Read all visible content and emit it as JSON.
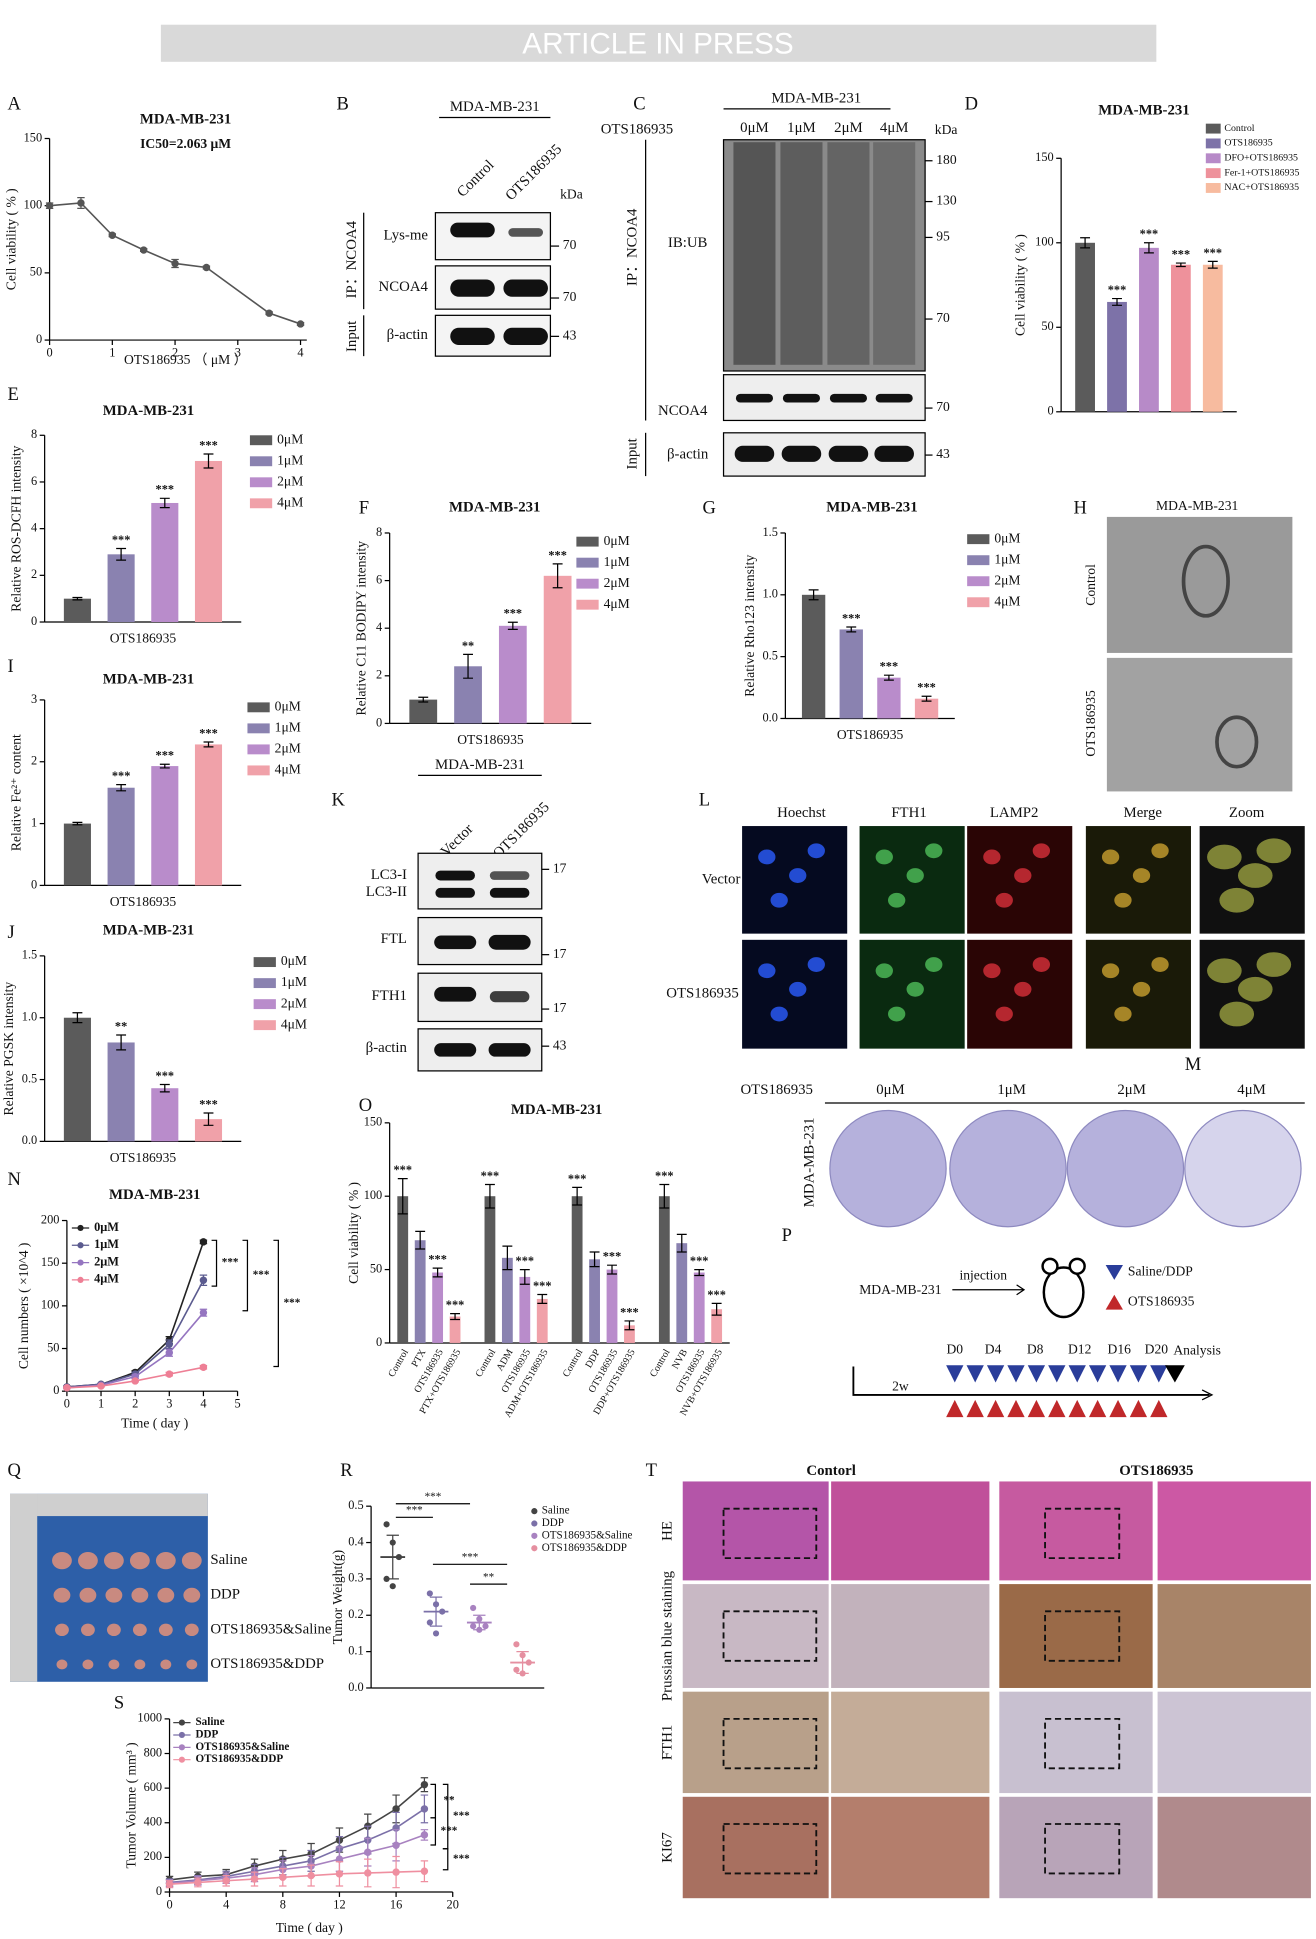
{
  "banner": "ARTICLE IN PRESS",
  "chart_data": [
    {
      "type": "line",
      "panel": "A",
      "title": "MDA-MB-231",
      "annotation": "IC50=2.063 μM",
      "xlabel": "OTS186935 （ μM ）",
      "ylabel": "Cell viability ( % )",
      "x": [
        0,
        0.5,
        1,
        1.5,
        2,
        2.5,
        3.5,
        4
      ],
      "series": [
        {
          "color": "#555555",
          "values": [
            100,
            102,
            78,
            67,
            57,
            54,
            20,
            12
          ],
          "errors": [
            2,
            4,
            1,
            1,
            3,
            1,
            1,
            1
          ]
        }
      ],
      "xlim": [
        0,
        4.1
      ],
      "xticks": [
        0,
        1,
        2,
        3,
        4
      ],
      "ylim": [
        0,
        150
      ],
      "yticks": [
        0,
        50,
        100,
        150
      ],
      "markers": true
    },
    {
      "type": "bar",
      "panel": "D",
      "title": "MDA-MB-231",
      "ylabel": "Cell viability ( % )",
      "categories": [
        "Control",
        "OTS186935",
        "DFO+OTS186935",
        "Fer-1+OTS186935",
        "NAC+OTS186935"
      ],
      "values": [
        100,
        65,
        97,
        87,
        87
      ],
      "errors": [
        3,
        2,
        3,
        1,
        2
      ],
      "colors": [
        "#5b5b5b",
        "#7d72a8",
        "#b78ac8",
        "#ee919b",
        "#f7bb9f"
      ],
      "significance": [
        null,
        "***",
        "***",
        "***",
        "***"
      ],
      "ylim": [
        0,
        150
      ],
      "yticks": [
        0,
        50,
        100,
        150
      ],
      "legend": "upper right"
    },
    {
      "type": "bar",
      "panel": "E",
      "title": "MDA-MB-231",
      "xlabel": "OTS186935",
      "ylabel": "Relative ROS-DCFH intensity",
      "categories": [
        "0μM",
        "1μM",
        "2μM",
        "4μM"
      ],
      "values": [
        1,
        2.9,
        5.1,
        6.9
      ],
      "errors": [
        0.05,
        0.25,
        0.2,
        0.3
      ],
      "colors": [
        "#5b5b5b",
        "#8a82b0",
        "#b98ccb",
        "#f0a1a9"
      ],
      "significance": [
        null,
        "***",
        "***",
        "***"
      ],
      "ylim": [
        0,
        8
      ],
      "yticks": [
        0,
        2,
        4,
        6,
        8
      ],
      "legend": "right"
    },
    {
      "type": "bar",
      "panel": "F",
      "title": "MDA-MB-231",
      "xlabel": "OTS186935",
      "ylabel": "Relative C11 BODIPY intensity",
      "categories": [
        "0μM",
        "1μM",
        "2μM",
        "4μM"
      ],
      "values": [
        1,
        2.4,
        4.1,
        6.2
      ],
      "errors": [
        0.1,
        0.5,
        0.15,
        0.5
      ],
      "colors": [
        "#5b5b5b",
        "#8a82b0",
        "#b98ccb",
        "#f0a1a9"
      ],
      "significance": [
        null,
        "**",
        "***",
        "***"
      ],
      "ylim": [
        0,
        8
      ],
      "yticks": [
        0,
        2,
        4,
        6,
        8
      ],
      "legend": "right"
    },
    {
      "type": "bar",
      "panel": "G",
      "title": "MDA-MB-231",
      "xlabel": "OTS186935",
      "ylabel": "Relative Rho123 intensity",
      "categories": [
        "0μM",
        "1μM",
        "2μM",
        "4μM"
      ],
      "values": [
        1,
        0.72,
        0.33,
        0.16
      ],
      "errors": [
        0.04,
        0.02,
        0.02,
        0.02
      ],
      "colors": [
        "#5b5b5b",
        "#8a82b0",
        "#b98ccb",
        "#f0a1a9"
      ],
      "significance": [
        null,
        "***",
        "***",
        "***"
      ],
      "ylim": [
        0,
        1.5
      ],
      "yticks": [
        {
          "value": 0,
          "label": "0.0"
        },
        {
          "value": 0.5,
          "label": "0.5"
        },
        {
          "value": 1,
          "label": "1.0"
        },
        {
          "value": 1.5,
          "label": "1.5"
        }
      ],
      "legend": "right"
    },
    {
      "type": "bar",
      "panel": "I",
      "title": "MDA-MB-231",
      "xlabel": "OTS186935",
      "ylabel": "Relative Fe²⁺ content",
      "categories": [
        "0μM",
        "1μM",
        "2μM",
        "4μM"
      ],
      "values": [
        1,
        1.58,
        1.93,
        2.28
      ],
      "errors": [
        0.02,
        0.05,
        0.03,
        0.04
      ],
      "colors": [
        "#5b5b5b",
        "#8a82b0",
        "#b98ccb",
        "#f0a1a9"
      ],
      "significance": [
        null,
        "***",
        "***",
        "***"
      ],
      "ylim": [
        0,
        3
      ],
      "yticks": [
        0,
        1,
        2,
        3
      ],
      "legend": "right"
    },
    {
      "type": "bar",
      "panel": "J",
      "title": "MDA-MB-231",
      "xlabel": "OTS186935",
      "ylabel": "Relative PGSK intensity",
      "categories": [
        "0μM",
        "1μM",
        "2μM",
        "4μM"
      ],
      "values": [
        1,
        0.8,
        0.43,
        0.18
      ],
      "errors": [
        0.04,
        0.06,
        0.03,
        0.05
      ],
      "colors": [
        "#5b5b5b",
        "#8a82b0",
        "#b98ccb",
        "#f0a1a9"
      ],
      "significance": [
        null,
        "**",
        "***",
        "***"
      ],
      "ylim": [
        0,
        1.5
      ],
      "yticks": [
        {
          "value": 0,
          "label": "0.0"
        },
        {
          "value": 0.5,
          "label": "0.5"
        },
        {
          "value": 1,
          "label": "1.0"
        },
        {
          "value": 1.5,
          "label": "1.5"
        }
      ],
      "legend": "right"
    },
    {
      "type": "line",
      "panel": "N",
      "title": "MDA-MB-231",
      "xlabel": "Time ( day )",
      "ylabel": "Cell numbers ( ×10^4 )",
      "x": [
        0,
        1,
        2,
        3,
        4
      ],
      "series": [
        {
          "name": "0μM",
          "color": "#222222",
          "values": [
            5,
            8,
            22,
            60,
            175
          ],
          "errors": [
            1,
            1,
            2,
            4,
            2
          ]
        },
        {
          "name": "1μM",
          "color": "#5b5b8f",
          "values": [
            5,
            8,
            20,
            55,
            130
          ],
          "errors": [
            1,
            1,
            2,
            5,
            6
          ]
        },
        {
          "name": "2μM",
          "color": "#9575c0",
          "values": [
            4,
            7,
            17,
            45,
            92
          ],
          "errors": [
            1,
            1,
            2,
            4,
            4
          ]
        },
        {
          "name": "4μM",
          "color": "#ee7f95",
          "values": [
            4,
            6,
            12,
            20,
            28
          ],
          "errors": [
            1,
            1,
            1,
            2,
            2
          ]
        }
      ],
      "significance": [
        "***",
        "***",
        "***"
      ],
      "xlim": [
        0,
        5
      ],
      "xticks": [
        0,
        1,
        2,
        3,
        4,
        5
      ],
      "ylim": [
        0,
        200
      ],
      "yticks": [
        0,
        50,
        100,
        150,
        200
      ],
      "markers": true,
      "legend": "upper left"
    },
    {
      "type": "bar",
      "panel": "O",
      "title": "MDA-MB-231",
      "ylabel": "Cell viability ( % )",
      "categories": [
        "Control",
        "PTX",
        "OTS186935",
        "PTX+OTS186935",
        "Control",
        "ADM",
        "OTS186935",
        "ADM+OTS186935",
        "Control",
        "DDP",
        "OTS186935",
        "DDP+OTS186935",
        "Control",
        "NVB",
        "OTS186935",
        "NVB+OTS186935"
      ],
      "values": [
        100,
        70,
        48,
        18,
        100,
        58,
        45,
        30,
        100,
        57,
        50,
        12,
        100,
        68,
        48,
        23
      ],
      "errors": [
        12,
        6,
        3,
        2,
        8,
        8,
        5,
        3,
        6,
        5,
        3,
        3,
        8,
        6,
        2,
        4
      ],
      "colors": [
        "#5b5b5b",
        "#8a82b0",
        "#b98ccb",
        "#f0a1a9"
      ],
      "significance": [
        "***",
        null,
        "***",
        "***",
        "***",
        null,
        "***",
        "***",
        "***",
        null,
        "***",
        "***",
        "***",
        null,
        "***",
        "***"
      ],
      "ylim": [
        0,
        150
      ],
      "yticks": [
        0,
        50,
        100,
        150
      ]
    },
    {
      "type": "dot",
      "panel": "R",
      "ylabel": "Tumor Weight(g)",
      "categories": [
        "Saline",
        "DDP",
        "OTS186935&Saline",
        "OTS186935&DDP"
      ],
      "values": [
        0.36,
        0.21,
        0.18,
        0.07
      ],
      "errors": [
        0.06,
        0.04,
        0.02,
        0.03
      ],
      "points": [
        [
          0.45,
          0.4,
          0.36,
          0.3,
          0.28
        ],
        [
          0.26,
          0.23,
          0.21,
          0.18,
          0.15
        ],
        [
          0.22,
          0.19,
          0.17,
          0.17,
          0.16
        ],
        [
          0.12,
          0.09,
          0.07,
          0.05,
          0.04
        ]
      ],
      "colors": [
        "#444444",
        "#7b70a8",
        "#a882c0",
        "#e58fa0"
      ],
      "significance": [
        "***",
        "***",
        "***",
        "**"
      ],
      "ylim": [
        0,
        0.5
      ],
      "yticks": [
        {
          "value": 0,
          "label": "0.0"
        },
        {
          "value": 0.1,
          "label": "0.1"
        },
        {
          "value": 0.2,
          "label": "0.2"
        },
        {
          "value": 0.3,
          "label": "0.3"
        },
        {
          "value": 0.4,
          "label": "0.4"
        },
        {
          "value": 0.5,
          "label": "0.5"
        }
      ],
      "legend": "upper right"
    },
    {
      "type": "line",
      "panel": "S",
      "xlabel": "Time ( day )",
      "ylabel": "Tumor Volume ( mm³ )",
      "x": [
        0,
        2,
        4,
        6,
        8,
        10,
        12,
        14,
        16,
        18
      ],
      "series": [
        {
          "name": "Saline",
          "color": "#444444",
          "values": [
            70,
            90,
            100,
            150,
            190,
            220,
            300,
            380,
            480,
            620
          ],
          "errors": [
            20,
            25,
            30,
            40,
            50,
            60,
            70,
            70,
            80,
            40
          ]
        },
        {
          "name": "DDP",
          "color": "#7b70a8",
          "values": [
            55,
            70,
            90,
            120,
            150,
            180,
            250,
            300,
            370,
            480
          ],
          "errors": [
            20,
            25,
            30,
            40,
            50,
            60,
            70,
            80,
            90,
            80
          ]
        },
        {
          "name": "OTS186935&Saline",
          "color": "#a882c0",
          "values": [
            50,
            65,
            80,
            100,
            130,
            150,
            190,
            230,
            270,
            330
          ],
          "errors": [
            20,
            25,
            30,
            40,
            50,
            60,
            70,
            80,
            90,
            30
          ]
        },
        {
          "name": "OTS186935&DDP",
          "color": "#ef8fa0",
          "values": [
            45,
            55,
            65,
            75,
            85,
            95,
            105,
            110,
            115,
            120
          ],
          "errors": [
            20,
            25,
            30,
            40,
            50,
            60,
            70,
            80,
            90,
            60
          ]
        }
      ],
      "significance": [
        "**",
        "***",
        "***",
        "***"
      ],
      "xlim": [
        0,
        20
      ],
      "xticks": [
        0,
        4,
        8,
        12,
        16,
        20
      ],
      "ylim": [
        0,
        1000
      ],
      "yticks": [
        0,
        200,
        400,
        600,
        800,
        1000
      ],
      "markers": true,
      "legend": "upper left"
    }
  ],
  "panels": {
    "B": {
      "letter": "B",
      "cell_line": "MDA-MB-231",
      "lanes": [
        "Control",
        "OTS186935"
      ],
      "unit": "kDa",
      "rows": [
        "Lys-me",
        "NCOA4",
        "β-actin"
      ],
      "groups": [
        "IP：NCOA4",
        "Input"
      ],
      "markers": [
        "70",
        "70",
        "43"
      ]
    },
    "C": {
      "letter": "C",
      "cell_line": "MDA-MB-231",
      "treatment": "OTS186935",
      "lanes": [
        "0μM",
        "1μM",
        "2μM",
        "4μM"
      ],
      "unit": "kDa",
      "rows": [
        "IB:UB",
        "NCOA4",
        "β-actin"
      ],
      "groups": [
        "IP：NCOA4",
        "Input"
      ],
      "markers": [
        "180",
        "130",
        "95",
        "70",
        "70",
        "43"
      ]
    },
    "H": {
      "letter": "H",
      "cell_line": "MDA-MB-231",
      "rows": [
        "Control",
        "OTS186935"
      ]
    },
    "K": {
      "letter": "K",
      "cell_line": "MDA-MB-231",
      "lanes": [
        "Vector",
        "OTS186935"
      ],
      "rows": [
        "LC3-I",
        "LC3-II",
        "FTL",
        "FTH1",
        "β-actin"
      ],
      "markers": [
        "17",
        "17",
        "17",
        "43"
      ]
    },
    "L": {
      "letter": "L",
      "columns": [
        "Hoechst",
        "FTH1",
        "LAMP2",
        "Merge",
        "Zoom"
      ],
      "rows": [
        "Vector",
        "OTS186935"
      ]
    },
    "M": {
      "letter": "M",
      "treatment": "OTS186935",
      "columns": [
        "0μM",
        "1μM",
        "2μM",
        "4μM"
      ],
      "cell_line": "MDA-MB-231"
    },
    "P": {
      "letter": "P",
      "cell_line": "MDA-MB-231",
      "step": "injection",
      "legend": [
        "Saline/DDP",
        "OTS186935"
      ],
      "days": [
        "D0",
        "D4",
        "D8",
        "D12",
        "D16",
        "D20"
      ],
      "end": "Analysis",
      "pre": "2w"
    },
    "Q": {
      "letter": "Q",
      "rows": [
        "Saline",
        "DDP",
        "OTS186935&Saline",
        "OTS186935&DDP"
      ]
    },
    "T": {
      "letter": "T",
      "columns": [
        "Contorl",
        "OTS186935"
      ],
      "rows": [
        "HE",
        "Prussian blue staining",
        "FTH1",
        "KI67"
      ]
    }
  }
}
